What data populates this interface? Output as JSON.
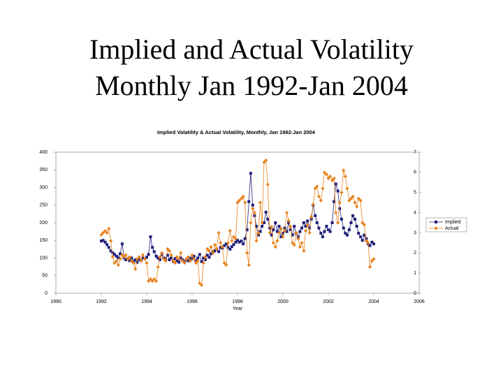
{
  "slide": {
    "title_lines": [
      "Implied and Actual Volatility",
      "Monthly Jan 1992-Jan 2004"
    ]
  },
  "chart_data": {
    "type": "line",
    "title": "Implied Volatility & Actual Volatility, Monthly, Jan 1992-Jan 2004",
    "x_label": "Year",
    "x": [
      1992.0,
      1992.08,
      1992.17,
      1992.25,
      1992.33,
      1992.42,
      1992.5,
      1992.58,
      1992.67,
      1992.75,
      1992.83,
      1992.92,
      1993.0,
      1993.08,
      1993.17,
      1993.25,
      1993.33,
      1993.42,
      1993.5,
      1993.58,
      1993.67,
      1993.75,
      1993.83,
      1993.92,
      1994.0,
      1994.08,
      1994.17,
      1994.25,
      1994.33,
      1994.42,
      1994.5,
      1994.58,
      1994.67,
      1994.75,
      1994.83,
      1994.92,
      1995.0,
      1995.08,
      1995.17,
      1995.25,
      1995.33,
      1995.42,
      1995.5,
      1995.58,
      1995.67,
      1995.75,
      1995.83,
      1995.92,
      1996.0,
      1996.08,
      1996.17,
      1996.25,
      1996.33,
      1996.42,
      1996.5,
      1996.58,
      1996.67,
      1996.75,
      1996.83,
      1996.92,
      1997.0,
      1997.08,
      1997.17,
      1997.25,
      1997.33,
      1997.42,
      1997.5,
      1997.58,
      1997.67,
      1997.75,
      1997.83,
      1997.92,
      1998.0,
      1998.08,
      1998.17,
      1998.25,
      1998.33,
      1998.42,
      1998.5,
      1998.58,
      1998.67,
      1998.75,
      1998.83,
      1998.92,
      1999.0,
      1999.08,
      1999.17,
      1999.25,
      1999.33,
      1999.42,
      1999.5,
      1999.58,
      1999.67,
      1999.75,
      1999.83,
      1999.92,
      2000.0,
      2000.08,
      2000.17,
      2000.25,
      2000.33,
      2000.42,
      2000.5,
      2000.58,
      2000.67,
      2000.75,
      2000.83,
      2000.92,
      2001.0,
      2001.08,
      2001.17,
      2001.25,
      2001.33,
      2001.42,
      2001.5,
      2001.58,
      2001.67,
      2001.75,
      2001.83,
      2001.92,
      2002.0,
      2002.08,
      2002.17,
      2002.25,
      2002.33,
      2002.42,
      2002.5,
      2002.58,
      2002.67,
      2002.75,
      2002.83,
      2002.92,
      2003.0,
      2003.08,
      2003.17,
      2003.25,
      2003.33,
      2003.42,
      2003.5,
      2003.58,
      2003.67,
      2003.75,
      2003.83,
      2003.92,
      2004.0
    ],
    "series": [
      {
        "name": "Implied",
        "color": "#1f1f7a",
        "marker": "square",
        "axis": "y",
        "values": [
          148,
          150,
          145,
          138,
          130,
          120,
          115,
          110,
          105,
          100,
          112,
          140,
          100,
          95,
          98,
          92,
          100,
          90,
          95,
          88,
          96,
          92,
          100,
          98,
          102,
          110,
          160,
          130,
          118,
          105,
          100,
          95,
          110,
          100,
          98,
          108,
          95,
          100,
          90,
          98,
          92,
          88,
          100,
          95,
          90,
          96,
          92,
          100,
          98,
          105,
          92,
          100,
          110,
          90,
          100,
          95,
          108,
          102,
          112,
          118,
          120,
          125,
          118,
          130,
          128,
          135,
          140,
          130,
          125,
          132,
          138,
          145,
          150,
          145,
          148,
          140,
          155,
          180,
          260,
          340,
          250,
          220,
          190,
          165,
          175,
          190,
          200,
          230,
          210,
          185,
          165,
          180,
          200,
          175,
          190,
          160,
          170,
          185,
          175,
          200,
          180,
          165,
          190,
          170,
          160,
          175,
          185,
          200,
          190,
          205,
          185,
          210,
          250,
          220,
          200,
          185,
          170,
          160,
          175,
          190,
          180,
          175,
          200,
          260,
          310,
          290,
          240,
          210,
          185,
          170,
          165,
          180,
          200,
          220,
          210,
          190,
          170,
          160,
          150,
          165,
          155,
          140,
          135,
          145,
          140
        ]
      },
      {
        "name": "Actual",
        "color": "#e8821e",
        "marker": "diamond",
        "axis": "y2",
        "values": [
          2.9,
          3.0,
          3.1,
          3.0,
          3.2,
          2.6,
          1.8,
          1.5,
          1.6,
          1.4,
          1.7,
          1.9,
          1.8,
          1.9,
          1.7,
          1.8,
          1.6,
          1.5,
          1.2,
          1.7,
          1.8,
          1.6,
          1.9,
          1.7,
          1.5,
          0.6,
          0.7,
          0.6,
          0.7,
          0.6,
          1.3,
          1.8,
          2.0,
          1.7,
          1.6,
          2.2,
          2.1,
          1.9,
          1.6,
          1.5,
          1.8,
          1.7,
          2.0,
          1.6,
          1.5,
          1.7,
          1.8,
          1.6,
          1.9,
          1.7,
          1.5,
          1.6,
          0.5,
          0.4,
          1.5,
          1.8,
          2.2,
          2.1,
          2.3,
          2.0,
          2.4,
          2.2,
          3.0,
          2.5,
          2.3,
          1.5,
          1.4,
          2.5,
          3.1,
          2.6,
          2.8,
          2.7,
          4.5,
          4.6,
          4.7,
          4.8,
          4.5,
          2.0,
          1.4,
          3.5,
          4.2,
          4.0,
          2.6,
          3.0,
          4.5,
          3.5,
          6.5,
          6.6,
          5.4,
          3.0,
          3.3,
          2.5,
          2.3,
          2.6,
          3.0,
          3.2,
          2.8,
          3.1,
          4.0,
          3.6,
          3.3,
          2.5,
          2.4,
          3.0,
          2.7,
          2.3,
          2.5,
          2.1,
          3.1,
          3.4,
          3.0,
          3.8,
          4.4,
          5.2,
          5.3,
          4.8,
          4.6,
          5.2,
          6.0,
          5.9,
          5.7,
          5.8,
          5.6,
          5.7,
          4.0,
          3.5,
          4.5,
          5.0,
          6.1,
          5.8,
          5.2,
          4.6,
          4.7,
          4.8,
          4.5,
          4.3,
          4.7,
          4.6,
          3.5,
          3.4,
          2.6,
          2.5,
          1.3,
          1.6,
          1.7
        ]
      }
    ],
    "xlim": [
      1990,
      2006
    ],
    "xticks": [
      1990,
      1992,
      1994,
      1996,
      1998,
      2000,
      2002,
      2004,
      2006
    ],
    "ylim": [
      0,
      400
    ],
    "yticks": [
      0,
      50,
      100,
      150,
      200,
      250,
      300,
      350,
      400
    ],
    "y2lim": [
      0,
      7
    ],
    "y2ticks": [
      0,
      1,
      2,
      3,
      4,
      5,
      6,
      7
    ],
    "grid": false,
    "legend": "right"
  }
}
